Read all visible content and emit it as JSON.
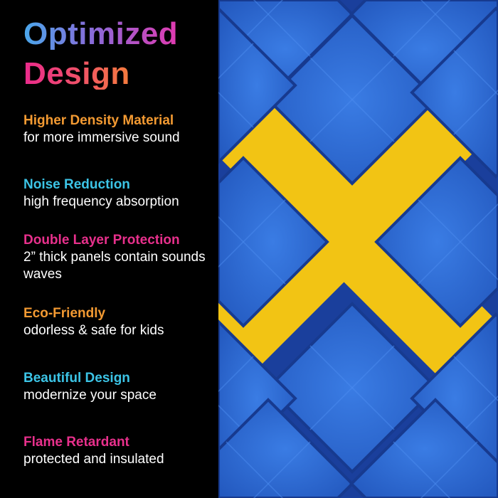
{
  "title": {
    "line1": "Optimized",
    "line2": "Design"
  },
  "features": [
    {
      "heading": "Higher Density Material",
      "desc": "for more immersive sound",
      "color": "#f39a32"
    },
    {
      "heading": "Noise Reduction",
      "desc": "high frequency absorption",
      "color": "#3cc4e6"
    },
    {
      "heading": "Double Layer Protection",
      "desc": "2” thick panels contain sounds waves",
      "color": "#e8308c"
    },
    {
      "heading": "Eco-Friendly",
      "desc": "odorless & safe for kids",
      "color": "#f39a32"
    },
    {
      "heading": "Beautiful Design",
      "desc": "modernize your space",
      "color": "#3cc4e6"
    },
    {
      "heading": "Flame Retardant",
      "desc": "protected and insulated",
      "color": "#e8308c"
    }
  ],
  "photo": {
    "foam_color": "#2f6fd6",
    "accent_color": "#f2c414"
  }
}
